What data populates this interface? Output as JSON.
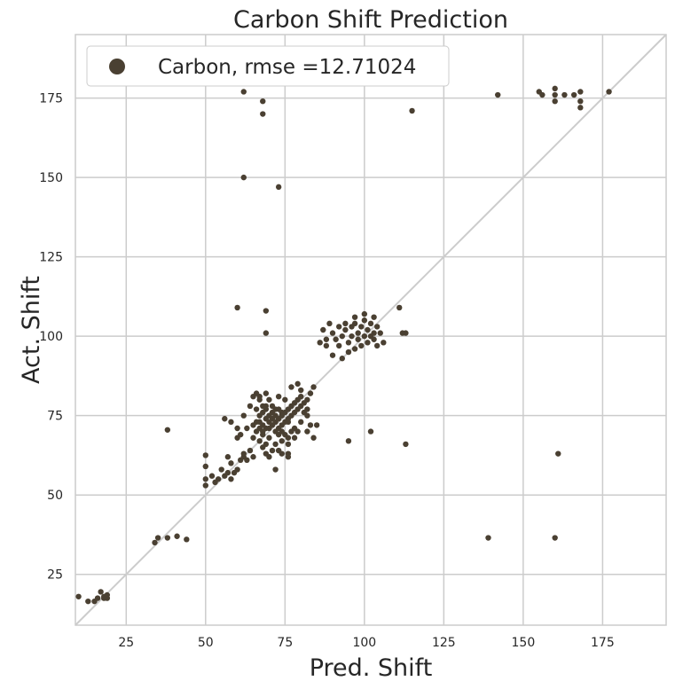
{
  "chart_data": {
    "type": "scatter",
    "title": "Carbon Shift Prediction",
    "xlabel": "Pred. Shift",
    "ylabel": "Act. Shift",
    "xlim": [
      9,
      195
    ],
    "ylim": [
      9,
      195
    ],
    "xticks": [
      25,
      50,
      75,
      100,
      125,
      150,
      175
    ],
    "yticks": [
      25,
      50,
      75,
      100,
      125,
      150,
      175
    ],
    "grid": true,
    "legend_position": "top-left",
    "diagonal": true,
    "colors": {
      "point": "#4a4032",
      "grid": "#cccccc",
      "diagonal": "#cccccc",
      "frame": "#cccccc"
    },
    "series": [
      {
        "name": "Carbon, rmse =12.71024",
        "points": [
          [
            10,
            18
          ],
          [
            13,
            16.5
          ],
          [
            15,
            16.5
          ],
          [
            16,
            17.5
          ],
          [
            17,
            19.5
          ],
          [
            18,
            17.5
          ],
          [
            18,
            18
          ],
          [
            19,
            17.5
          ],
          [
            19,
            18.5
          ],
          [
            34,
            35
          ],
          [
            35,
            36.5
          ],
          [
            38,
            36.5
          ],
          [
            41,
            37
          ],
          [
            44,
            36
          ],
          [
            38,
            70.5
          ],
          [
            50,
            53
          ],
          [
            50,
            55
          ],
          [
            50,
            59
          ],
          [
            50,
            62.5
          ],
          [
            52,
            56
          ],
          [
            53,
            54
          ],
          [
            54,
            55
          ],
          [
            55,
            58
          ],
          [
            56,
            56
          ],
          [
            57,
            57
          ],
          [
            58,
            60
          ],
          [
            58,
            55
          ],
          [
            59,
            57
          ],
          [
            60,
            58
          ],
          [
            61,
            61
          ],
          [
            62,
            62
          ],
          [
            62,
            63
          ],
          [
            64,
            64
          ],
          [
            63,
            61
          ],
          [
            65,
            62
          ],
          [
            57,
            62
          ],
          [
            56,
            74
          ],
          [
            58,
            73
          ],
          [
            60,
            68
          ],
          [
            61,
            69
          ],
          [
            60,
            71
          ],
          [
            62,
            75
          ],
          [
            63,
            71
          ],
          [
            64,
            78
          ],
          [
            65,
            81
          ],
          [
            66,
            77
          ],
          [
            67,
            80
          ],
          [
            68,
            78
          ],
          [
            67,
            73
          ],
          [
            66,
            70
          ],
          [
            65,
            68
          ],
          [
            65,
            72
          ],
          [
            67,
            67
          ],
          [
            68,
            65
          ],
          [
            69,
            66
          ],
          [
            70,
            68
          ],
          [
            69,
            63
          ],
          [
            70,
            62
          ],
          [
            71,
            64
          ],
          [
            72,
            66
          ],
          [
            73,
            64
          ],
          [
            74,
            63
          ],
          [
            76,
            63
          ],
          [
            72,
            58
          ],
          [
            76,
            62
          ],
          [
            68,
            70
          ],
          [
            68,
            72
          ],
          [
            69,
            74
          ],
          [
            70,
            75
          ],
          [
            70,
            71
          ],
          [
            71,
            72
          ],
          [
            71,
            76
          ],
          [
            72,
            73
          ],
          [
            72,
            70
          ],
          [
            73,
            74
          ],
          [
            73,
            77
          ],
          [
            74,
            72
          ],
          [
            74,
            75
          ],
          [
            75,
            76
          ],
          [
            75,
            73
          ],
          [
            76,
            74
          ],
          [
            76,
            77
          ],
          [
            77,
            78
          ],
          [
            77,
            75
          ],
          [
            78,
            76
          ],
          [
            78,
            79
          ],
          [
            79,
            77
          ],
          [
            79,
            80
          ],
          [
            80,
            78
          ],
          [
            80,
            81
          ],
          [
            81,
            79
          ],
          [
            82,
            80
          ],
          [
            83,
            82
          ],
          [
            84,
            84
          ],
          [
            79,
            85
          ],
          [
            80,
            83
          ],
          [
            82,
            77
          ],
          [
            82,
            75
          ],
          [
            83,
            72
          ],
          [
            82,
            70
          ],
          [
            84,
            68
          ],
          [
            85,
            72
          ],
          [
            78,
            71
          ],
          [
            77,
            70
          ],
          [
            76,
            68
          ],
          [
            75,
            69
          ],
          [
            74,
            70
          ],
          [
            73,
            71
          ],
          [
            72,
            75
          ],
          [
            71,
            78
          ],
          [
            70,
            80
          ],
          [
            69,
            78
          ],
          [
            67,
            81
          ],
          [
            66,
            82
          ],
          [
            69,
            82
          ],
          [
            73,
            81
          ],
          [
            75,
            80
          ],
          [
            77,
            84
          ],
          [
            76,
            73
          ],
          [
            74,
            76
          ],
          [
            72,
            77
          ],
          [
            71,
            74
          ],
          [
            70,
            73
          ],
          [
            69,
            71
          ],
          [
            68,
            69
          ],
          [
            67,
            71
          ],
          [
            66,
            73
          ],
          [
            67,
            75
          ],
          [
            68,
            76
          ],
          [
            69,
            77
          ],
          [
            73,
            69
          ],
          [
            74,
            67
          ],
          [
            76,
            66
          ],
          [
            78,
            68
          ],
          [
            79,
            70
          ],
          [
            80,
            73
          ],
          [
            81,
            76
          ],
          [
            88,
            97
          ],
          [
            88,
            99
          ],
          [
            90,
            101
          ],
          [
            91,
            99
          ],
          [
            92,
            103
          ],
          [
            92,
            97
          ],
          [
            93,
            100
          ],
          [
            94,
            102
          ],
          [
            95,
            98
          ],
          [
            96,
            103
          ],
          [
            96,
            100
          ],
          [
            97,
            96
          ],
          [
            97,
            104
          ],
          [
            98,
            101
          ],
          [
            98,
            99
          ],
          [
            99,
            103
          ],
          [
            99,
            97
          ],
          [
            100,
            100
          ],
          [
            100,
            105
          ],
          [
            101,
            102
          ],
          [
            101,
            98
          ],
          [
            102,
            104
          ],
          [
            102,
            100
          ],
          [
            103,
            101
          ],
          [
            103,
            99
          ],
          [
            104,
            103
          ],
          [
            104,
            97
          ],
          [
            105,
            101
          ],
          [
            95,
            95
          ],
          [
            93,
            93
          ],
          [
            90,
            94
          ],
          [
            86,
            98
          ],
          [
            87,
            102
          ],
          [
            89,
            104
          ],
          [
            94,
            104
          ],
          [
            97,
            106
          ],
          [
            100,
            107
          ],
          [
            103,
            106
          ],
          [
            106,
            98
          ],
          [
            112,
            101
          ],
          [
            111,
            109
          ],
          [
            113,
            101
          ],
          [
            60,
            109
          ],
          [
            69,
            108
          ],
          [
            69,
            101
          ],
          [
            95,
            67
          ],
          [
            102,
            70
          ],
          [
            113,
            66
          ],
          [
            161,
            63
          ],
          [
            139,
            36.5
          ],
          [
            160,
            36.5
          ],
          [
            62,
            177
          ],
          [
            68,
            174
          ],
          [
            68,
            170
          ],
          [
            115,
            171
          ],
          [
            62,
            150
          ],
          [
            73,
            147
          ],
          [
            142,
            176
          ],
          [
            155,
            177
          ],
          [
            156,
            176
          ],
          [
            160,
            178
          ],
          [
            160,
            176
          ],
          [
            160,
            174
          ],
          [
            163,
            176
          ],
          [
            166,
            176
          ],
          [
            168,
            177
          ],
          [
            168,
            174
          ],
          [
            168,
            172
          ],
          [
            177,
            177
          ]
        ]
      }
    ]
  }
}
